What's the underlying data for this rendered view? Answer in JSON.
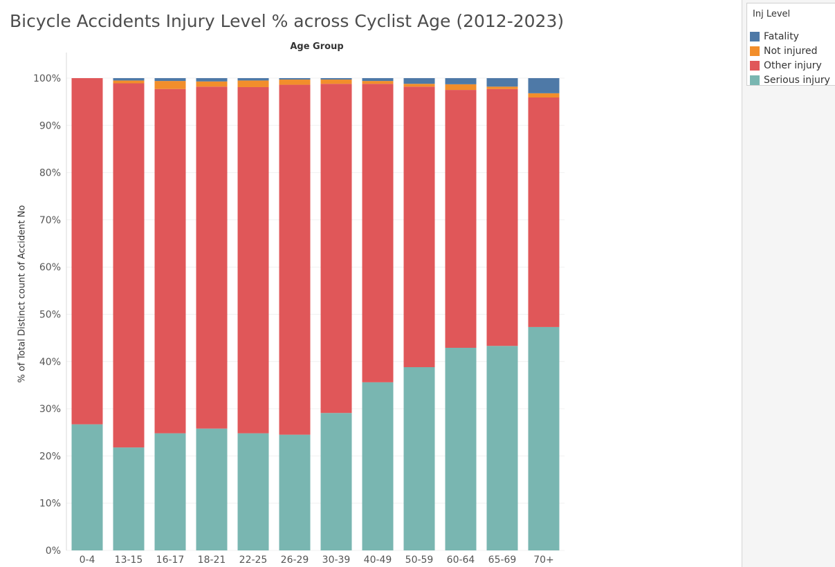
{
  "chart_data": {
    "type": "bar",
    "stacked": true,
    "title": "Bicycle Accidents Injury Level % across Cyclist Age (2012-2023)",
    "column_header": "Age Group",
    "ylabel": "% of Total Distinct count of Accident No",
    "ylim": [
      0,
      100
    ],
    "yticks": [
      "0%",
      "10%",
      "20%",
      "30%",
      "40%",
      "50%",
      "60%",
      "70%",
      "80%",
      "90%",
      "100%"
    ],
    "grid": true,
    "legend_placement": "right",
    "categories": [
      "0-4",
      "13-15",
      "16-17",
      "18-21",
      "22-25",
      "26-29",
      "30-39",
      "40-49",
      "50-59",
      "60-64",
      "65-69",
      "70+"
    ],
    "series": [
      {
        "name": "Serious injury",
        "color": "#79b6b1",
        "values": [
          26.7,
          21.8,
          24.8,
          25.8,
          24.8,
          24.5,
          29.1,
          35.6,
          38.8,
          42.9,
          43.3,
          47.3
        ]
      },
      {
        "name": "Other injury",
        "color": "#e05759",
        "values": [
          73.3,
          77.1,
          72.9,
          72.4,
          73.3,
          74.1,
          69.7,
          63.2,
          59.4,
          54.6,
          54.4,
          48.6
        ]
      },
      {
        "name": "Not injured",
        "color": "#f28e2b",
        "values": [
          0.0,
          0.6,
          1.7,
          1.1,
          1.4,
          1.1,
          0.9,
          0.6,
          0.6,
          1.2,
          0.5,
          0.9
        ]
      },
      {
        "name": "Fatality",
        "color": "#4e79a7",
        "values": [
          0.0,
          0.5,
          0.6,
          0.7,
          0.5,
          0.3,
          0.3,
          0.6,
          1.2,
          1.3,
          1.8,
          3.2
        ]
      }
    ]
  },
  "legend": {
    "title": "Inj Level",
    "items": [
      {
        "label": "Fatality",
        "color": "#4e79a7"
      },
      {
        "label": "Not injured",
        "color": "#f28e2b"
      },
      {
        "label": "Other injury",
        "color": "#e05759"
      },
      {
        "label": "Serious injury",
        "color": "#79b6b1"
      }
    ]
  }
}
